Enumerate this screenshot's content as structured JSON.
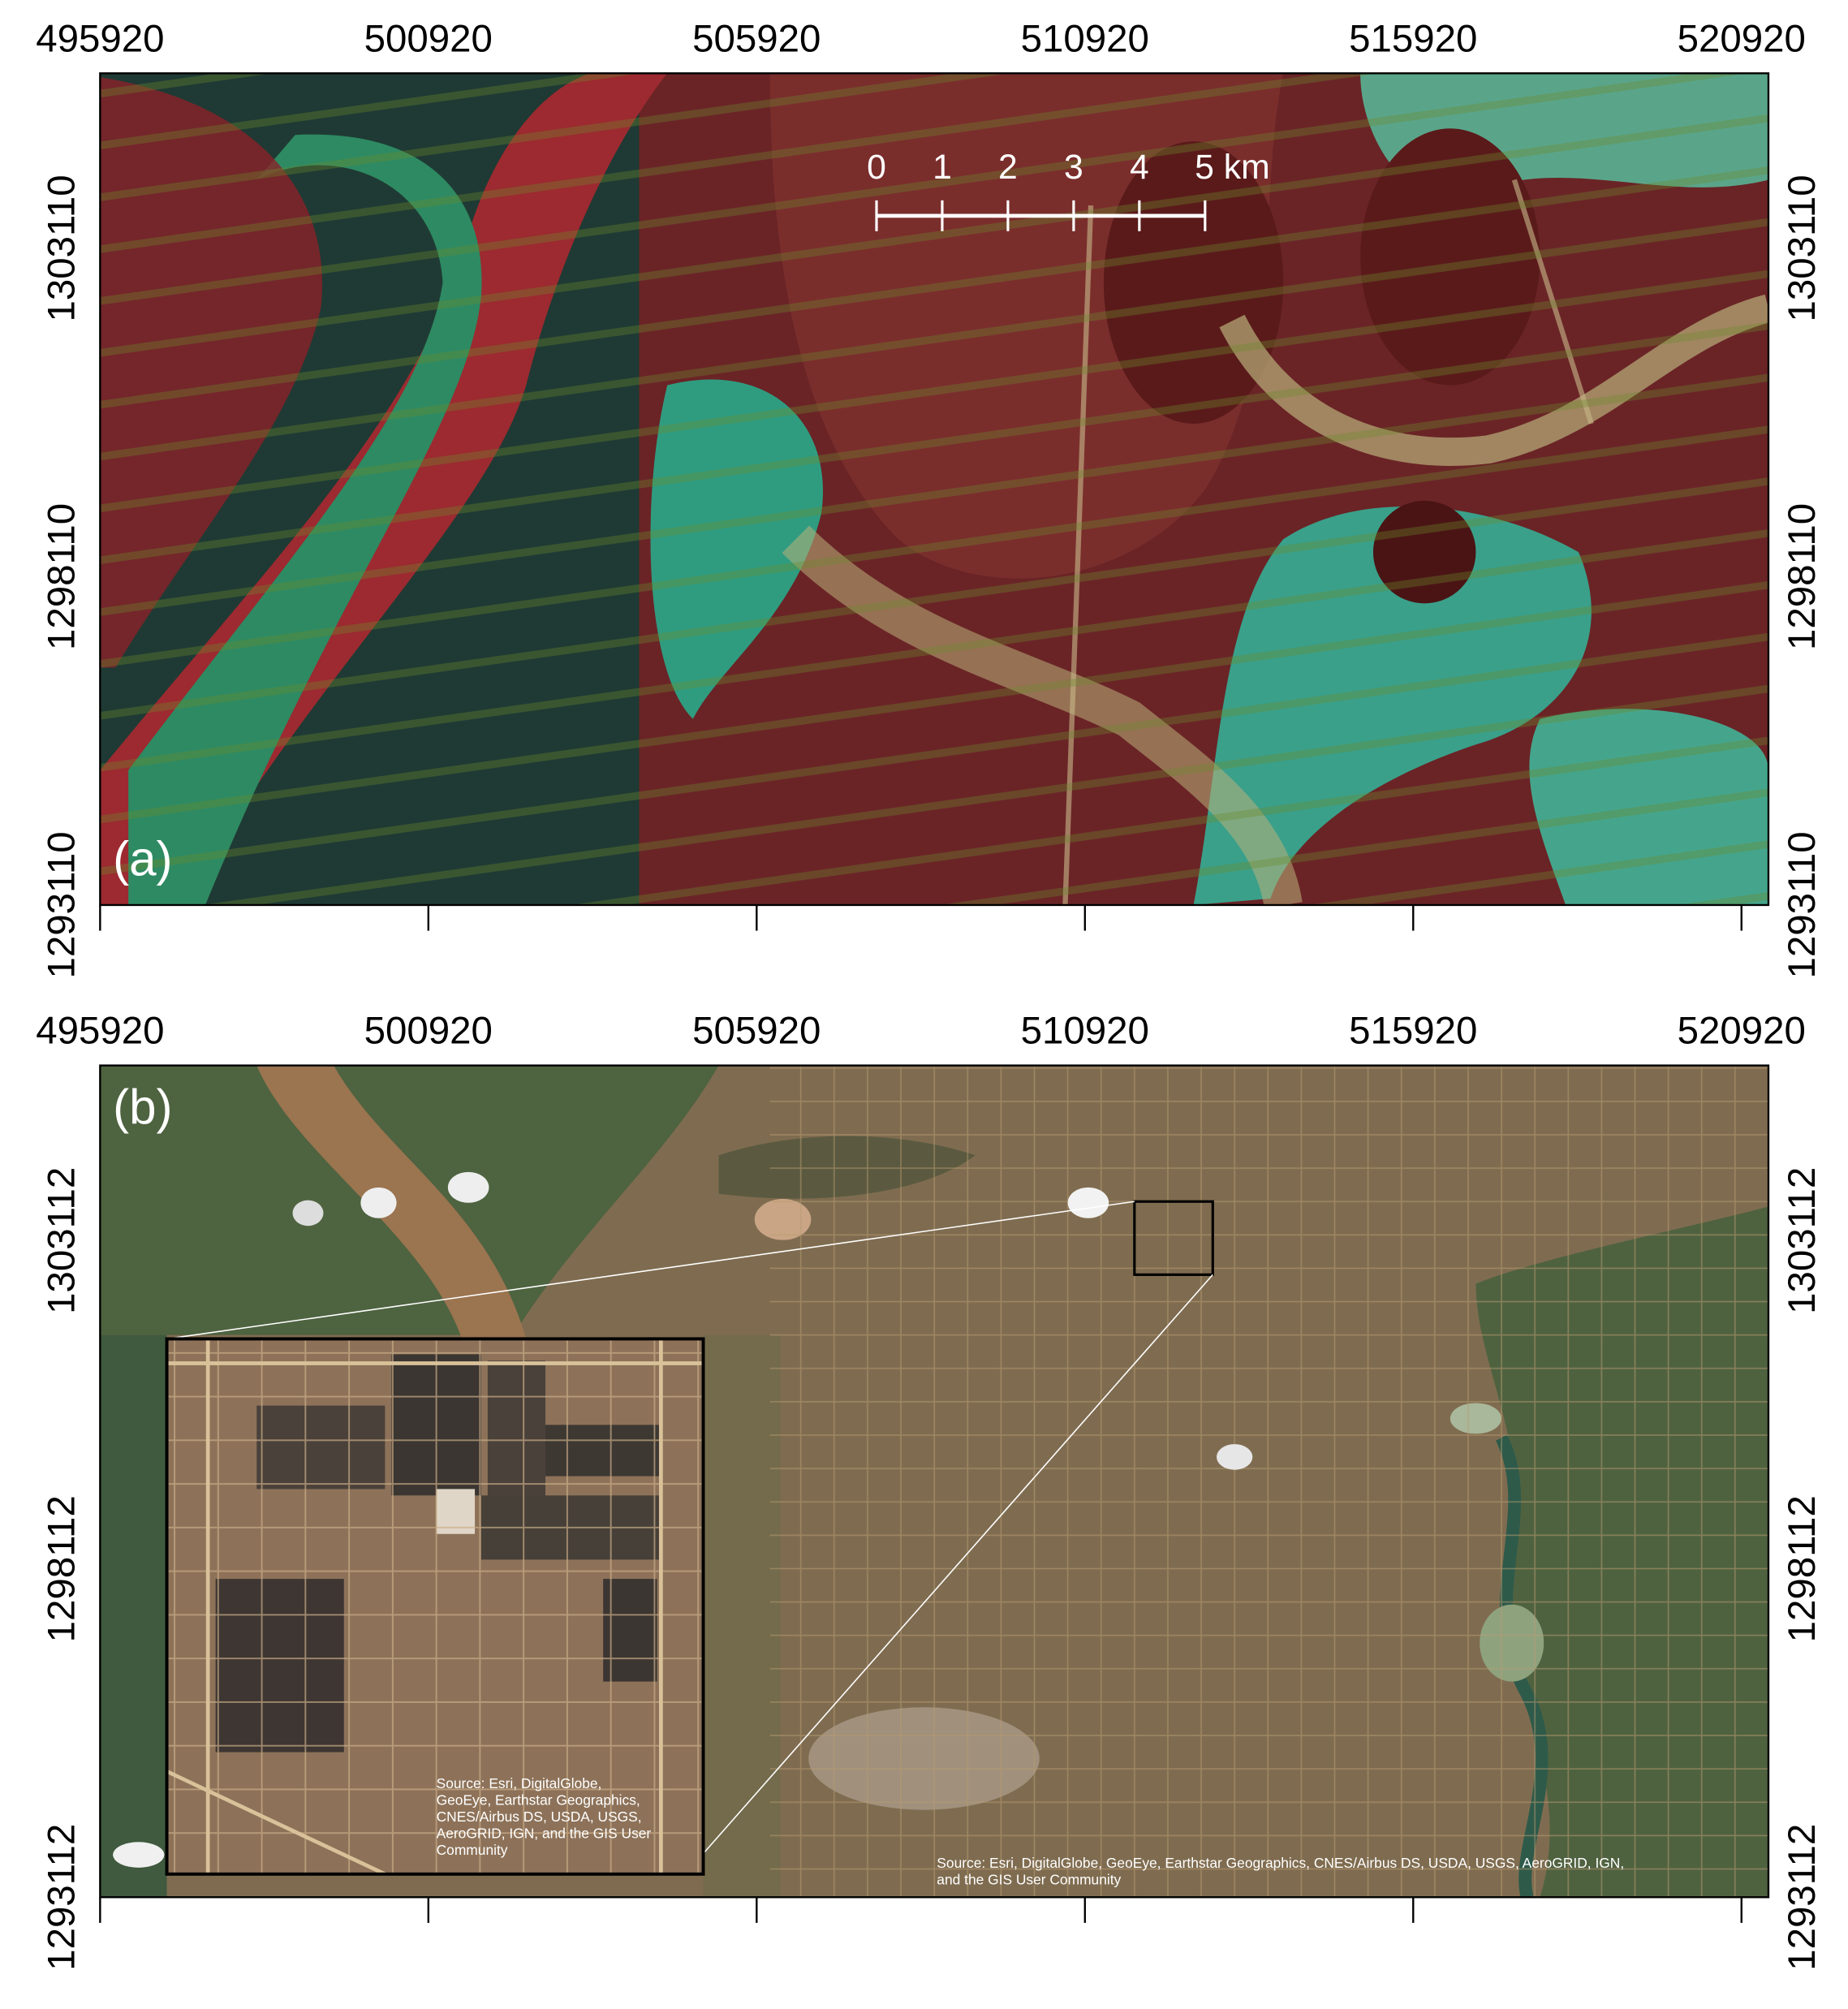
{
  "panels": [
    {
      "label": "(a)",
      "xticks": [
        495920,
        500920,
        505920,
        510920,
        515920,
        520920
      ],
      "yticks": [
        1303110,
        1298110,
        1293110
      ],
      "scale_bar": [
        "0",
        "1",
        "2",
        "3",
        "4",
        "5 km"
      ]
    },
    {
      "label": "(b)",
      "xticks": [
        495920,
        500920,
        505920,
        510920,
        515920,
        520920
      ],
      "yticks": [
        1303112,
        1298112,
        1293112
      ],
      "inset_source": [
        "Source: Esri, DigitalGlobe,",
        "GeoEye, Earthstar Geographics,",
        "CNES/Airbus DS, USDA, USGS,",
        "AeroGRID, IGN, and the GIS User",
        "Community"
      ],
      "source": [
        "Source: Esri, DigitalGlobe, GeoEye, Earthstar Geographics, CNES/Airbus DS, USDA, USGS, AeroGRID, IGN,",
        "and the GIS User Community"
      ]
    }
  ]
}
